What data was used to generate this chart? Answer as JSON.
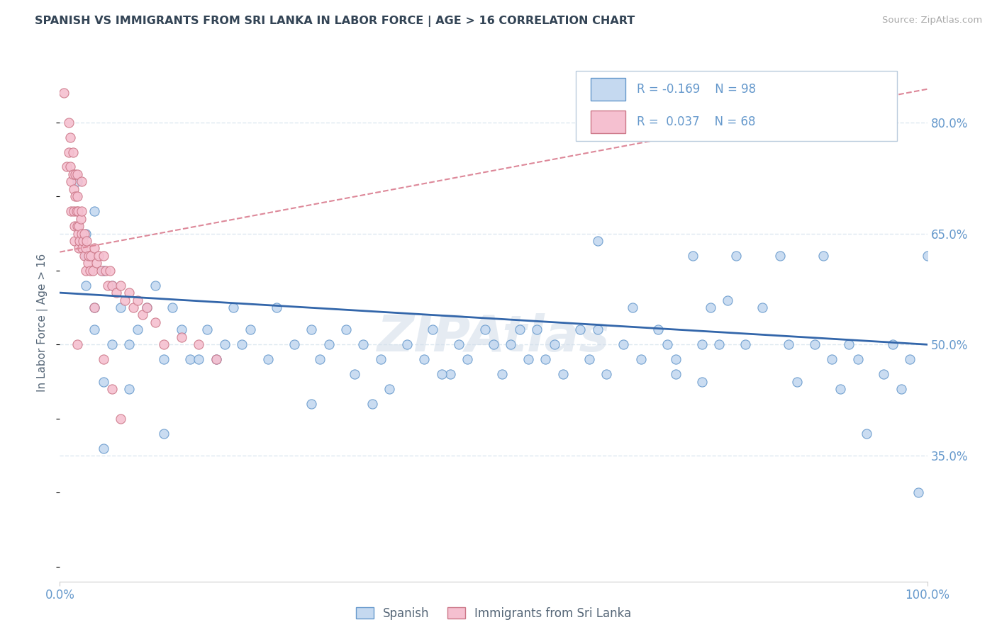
{
  "title": "SPANISH VS IMMIGRANTS FROM SRI LANKA IN LABOR FORCE | AGE > 16 CORRELATION CHART",
  "source": "Source: ZipAtlas.com",
  "ylabel": "In Labor Force | Age > 16",
  "xlim": [
    0.0,
    1.0
  ],
  "ylim": [
    0.18,
    0.88
  ],
  "y_ticks": [
    0.35,
    0.5,
    0.65,
    0.8
  ],
  "y_tick_labels": [
    "35.0%",
    "50.0%",
    "65.0%",
    "80.0%"
  ],
  "legend_labels": [
    "Spanish",
    "Immigrants from Sri Lanka"
  ],
  "blue_R": -0.169,
  "blue_N": 98,
  "pink_R": 0.037,
  "pink_N": 68,
  "blue_dot_color": "#c5d9f0",
  "blue_edge_color": "#6699cc",
  "pink_dot_color": "#f5c0d0",
  "pink_edge_color": "#cc7788",
  "blue_line_color": "#3366aa",
  "pink_line_color": "#dd8899",
  "watermark_color": "#d0dce8",
  "background_color": "#ffffff",
  "grid_color": "#dde8f0",
  "title_color": "#334455",
  "axis_tick_color": "#6699cc",
  "label_color": "#556677",
  "blue_scatter_x": [
    0.02,
    0.03,
    0.03,
    0.03,
    0.04,
    0.04,
    0.04,
    0.05,
    0.05,
    0.06,
    0.06,
    0.07,
    0.08,
    0.09,
    0.1,
    0.11,
    0.12,
    0.13,
    0.14,
    0.15,
    0.17,
    0.18,
    0.2,
    0.21,
    0.22,
    0.24,
    0.25,
    0.27,
    0.29,
    0.3,
    0.31,
    0.33,
    0.34,
    0.35,
    0.37,
    0.38,
    0.4,
    0.42,
    0.43,
    0.45,
    0.46,
    0.47,
    0.49,
    0.5,
    0.51,
    0.52,
    0.54,
    0.55,
    0.57,
    0.58,
    0.6,
    0.61,
    0.62,
    0.63,
    0.65,
    0.66,
    0.67,
    0.69,
    0.7,
    0.71,
    0.73,
    0.74,
    0.75,
    0.76,
    0.78,
    0.79,
    0.8,
    0.81,
    0.83,
    0.84,
    0.85,
    0.87,
    0.88,
    0.89,
    0.9,
    0.91,
    0.92,
    0.93,
    0.95,
    0.96,
    0.97,
    0.98,
    0.99,
    1.0,
    0.62,
    0.71,
    0.77,
    0.53,
    0.44,
    0.29,
    0.19,
    0.12,
    0.08,
    0.05,
    0.16,
    0.36,
    0.56,
    0.74
  ],
  "blue_scatter_y": [
    0.72,
    0.65,
    0.62,
    0.58,
    0.68,
    0.55,
    0.52,
    0.6,
    0.45,
    0.58,
    0.5,
    0.55,
    0.5,
    0.52,
    0.55,
    0.58,
    0.48,
    0.55,
    0.52,
    0.48,
    0.52,
    0.48,
    0.55,
    0.5,
    0.52,
    0.48,
    0.55,
    0.5,
    0.52,
    0.48,
    0.5,
    0.52,
    0.46,
    0.5,
    0.48,
    0.44,
    0.5,
    0.48,
    0.52,
    0.46,
    0.5,
    0.48,
    0.52,
    0.5,
    0.46,
    0.5,
    0.48,
    0.52,
    0.5,
    0.46,
    0.52,
    0.48,
    0.64,
    0.46,
    0.5,
    0.55,
    0.48,
    0.52,
    0.5,
    0.46,
    0.62,
    0.5,
    0.55,
    0.5,
    0.62,
    0.5,
    0.8,
    0.55,
    0.62,
    0.5,
    0.45,
    0.5,
    0.62,
    0.48,
    0.44,
    0.5,
    0.48,
    0.38,
    0.46,
    0.5,
    0.44,
    0.48,
    0.3,
    0.62,
    0.52,
    0.48,
    0.56,
    0.52,
    0.46,
    0.42,
    0.5,
    0.38,
    0.44,
    0.36,
    0.48,
    0.42,
    0.48,
    0.45
  ],
  "pink_scatter_x": [
    0.005,
    0.008,
    0.01,
    0.01,
    0.012,
    0.012,
    0.013,
    0.013,
    0.015,
    0.015,
    0.016,
    0.016,
    0.017,
    0.017,
    0.018,
    0.018,
    0.019,
    0.02,
    0.02,
    0.02,
    0.021,
    0.021,
    0.022,
    0.022,
    0.023,
    0.024,
    0.025,
    0.025,
    0.026,
    0.027,
    0.028,
    0.028,
    0.03,
    0.03,
    0.031,
    0.032,
    0.033,
    0.035,
    0.036,
    0.038,
    0.04,
    0.042,
    0.045,
    0.048,
    0.05,
    0.053,
    0.055,
    0.058,
    0.06,
    0.065,
    0.07,
    0.075,
    0.08,
    0.085,
    0.09,
    0.095,
    0.1,
    0.11,
    0.12,
    0.14,
    0.16,
    0.18,
    0.025,
    0.04,
    0.02,
    0.05,
    0.06,
    0.07
  ],
  "pink_scatter_y": [
    0.84,
    0.74,
    0.8,
    0.76,
    0.78,
    0.74,
    0.72,
    0.68,
    0.76,
    0.73,
    0.71,
    0.68,
    0.66,
    0.64,
    0.73,
    0.7,
    0.68,
    0.73,
    0.7,
    0.66,
    0.68,
    0.65,
    0.66,
    0.63,
    0.64,
    0.67,
    0.68,
    0.65,
    0.63,
    0.64,
    0.65,
    0.62,
    0.63,
    0.6,
    0.64,
    0.61,
    0.62,
    0.6,
    0.62,
    0.6,
    0.63,
    0.61,
    0.62,
    0.6,
    0.62,
    0.6,
    0.58,
    0.6,
    0.58,
    0.57,
    0.58,
    0.56,
    0.57,
    0.55,
    0.56,
    0.54,
    0.55,
    0.53,
    0.5,
    0.51,
    0.5,
    0.48,
    0.72,
    0.55,
    0.5,
    0.48,
    0.44,
    0.4
  ]
}
